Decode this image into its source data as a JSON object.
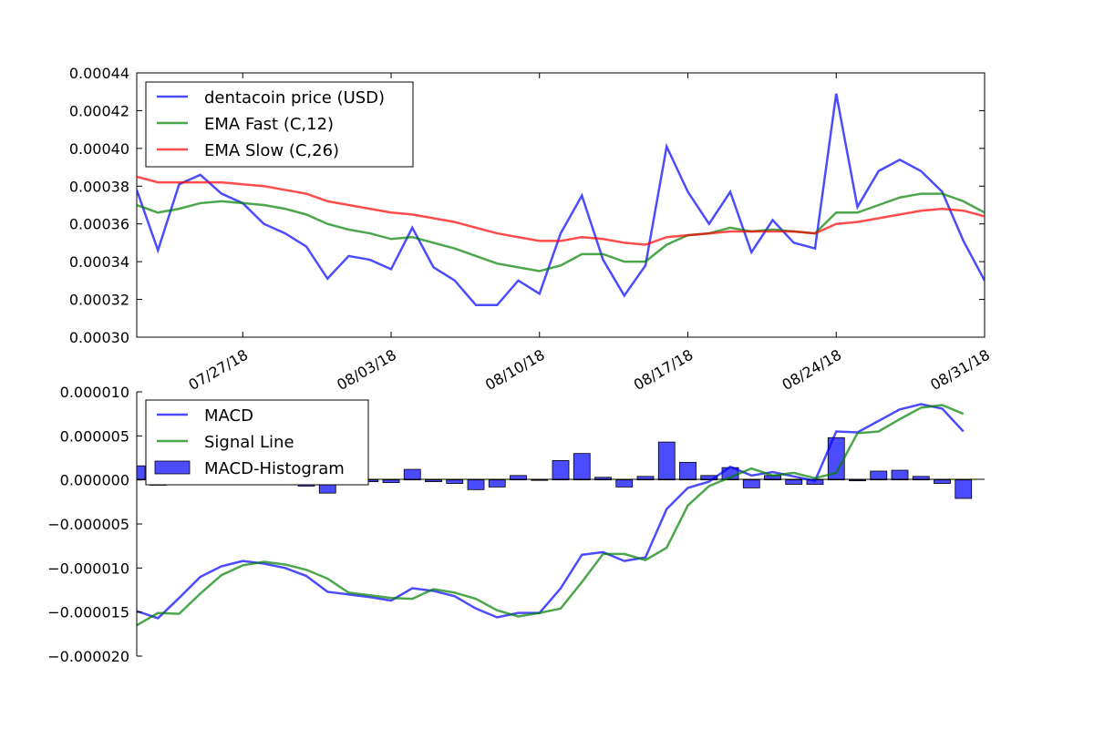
{
  "chart_data": [
    {
      "type": "line",
      "x": [
        "07/22/18",
        "07/23/18",
        "07/24/18",
        "07/25/18",
        "07/26/18",
        "07/27/18",
        "07/28/18",
        "07/29/18",
        "07/30/18",
        "07/31/18",
        "08/01/18",
        "08/02/18",
        "08/03/18",
        "08/04/18",
        "08/05/18",
        "08/06/18",
        "08/07/18",
        "08/08/18",
        "08/09/18",
        "08/10/18",
        "08/11/18",
        "08/12/18",
        "08/13/18",
        "08/14/18",
        "08/15/18",
        "08/16/18",
        "08/17/18",
        "08/18/18",
        "08/19/18",
        "08/20/18",
        "08/21/18",
        "08/22/18",
        "08/23/18",
        "08/24/18",
        "08/25/18",
        "08/26/18",
        "08/27/18",
        "08/28/18",
        "08/29/18",
        "08/30/18",
        "08/31/18"
      ],
      "series": [
        {
          "name": "dentacoin price (USD)",
          "color": "#0000ff",
          "values": [
            0.000378,
            0.000346,
            0.000381,
            0.000386,
            0.000376,
            0.000371,
            0.00036,
            0.000355,
            0.000348,
            0.000331,
            0.000343,
            0.000341,
            0.000336,
            0.000358,
            0.000337,
            0.00033,
            0.000317,
            0.000317,
            0.00033,
            0.000323,
            0.000355,
            0.000375,
            0.000341,
            0.000322,
            0.000338,
            0.000401,
            0.000377,
            0.00036,
            0.000377,
            0.000345,
            0.000362,
            0.00035,
            0.000347,
            0.000429,
            0.000369,
            0.000388,
            0.000394,
            0.000388,
            0.000377,
            0.000351,
            0.00033
          ]
        },
        {
          "name": "EMA Fast (C,12)",
          "color": "#008000",
          "values": [
            0.00037,
            0.000366,
            0.000368,
            0.000371,
            0.000372,
            0.000371,
            0.00037,
            0.000368,
            0.000365,
            0.00036,
            0.000357,
            0.000355,
            0.000352,
            0.000353,
            0.00035,
            0.000347,
            0.000343,
            0.000339,
            0.000337,
            0.000335,
            0.000338,
            0.000344,
            0.000344,
            0.00034,
            0.00034,
            0.000349,
            0.000354,
            0.000355,
            0.000358,
            0.000356,
            0.000357,
            0.000356,
            0.000355,
            0.000366,
            0.000366,
            0.00037,
            0.000374,
            0.000376,
            0.000376,
            0.000372,
            0.000366
          ]
        },
        {
          "name": "EMA Slow (C,26)",
          "color": "#ff0000",
          "values": [
            0.000385,
            0.000382,
            0.000382,
            0.000382,
            0.000382,
            0.000381,
            0.00038,
            0.000378,
            0.000376,
            0.000372,
            0.00037,
            0.000368,
            0.000366,
            0.000365,
            0.000363,
            0.000361,
            0.000358,
            0.000355,
            0.000353,
            0.000351,
            0.000351,
            0.000353,
            0.000352,
            0.00035,
            0.000349,
            0.000353,
            0.000354,
            0.000355,
            0.000356,
            0.000356,
            0.000356,
            0.000356,
            0.000355,
            0.00036,
            0.000361,
            0.000363,
            0.000365,
            0.000367,
            0.000368,
            0.000367,
            0.000364
          ]
        }
      ],
      "ylim": [
        0.0003,
        0.00044
      ],
      "yticks": [
        "0.00030",
        "0.00032",
        "0.00034",
        "0.00036",
        "0.00038",
        "0.00040",
        "0.00042",
        "0.00044"
      ],
      "xticks": [
        "07/27/18",
        "08/03/18",
        "08/10/18",
        "08/17/18",
        "08/24/18",
        "08/31/18"
      ],
      "legend": "top-left",
      "grid": false
    },
    {
      "type": "line",
      "x": [
        "07/22/18",
        "07/23/18",
        "07/24/18",
        "07/25/18",
        "07/26/18",
        "07/27/18",
        "07/28/18",
        "07/29/18",
        "07/30/18",
        "07/31/18",
        "08/01/18",
        "08/02/18",
        "08/03/18",
        "08/04/18",
        "08/05/18",
        "08/06/18",
        "08/07/18",
        "08/08/18",
        "08/09/18",
        "08/10/18",
        "08/11/18",
        "08/12/18",
        "08/13/18",
        "08/14/18",
        "08/15/18",
        "08/16/18",
        "08/17/18",
        "08/18/18",
        "08/19/18",
        "08/20/18",
        "08/21/18",
        "08/22/18",
        "08/23/18",
        "08/24/18",
        "08/25/18",
        "08/26/18",
        "08/27/18",
        "08/28/18",
        "08/29/18",
        "08/30/18"
      ],
      "series": [
        {
          "name": "MACD",
          "color": "#0000ff",
          "values": [
            -1.49e-05,
            -1.57e-05,
            -1.34e-05,
            -1.1e-05,
            -9.8e-06,
            -9.2e-06,
            -9.5e-06,
            -1e-05,
            -1.09e-05,
            -1.27e-05,
            -1.3e-05,
            -1.33e-05,
            -1.37e-05,
            -1.23e-05,
            -1.26e-05,
            -1.32e-05,
            -1.46e-05,
            -1.56e-05,
            -1.51e-05,
            -1.51e-05,
            -1.23e-05,
            -8.5e-06,
            -8.2e-06,
            -9.2e-06,
            -8.8e-06,
            -3.3e-06,
            -9e-07,
            -2e-07,
            1.5e-06,
            5e-07,
            9e-07,
            4e-07,
            -1e-07,
            5.5e-06,
            5.4e-06,
            6.7e-06,
            8e-06,
            8.6e-06,
            8.1e-06,
            5.5e-06
          ],
          "type": "line"
        },
        {
          "name": "Signal Line",
          "color": "#008000",
          "values": [
            -1.65e-05,
            -1.51e-05,
            -1.52e-05,
            -1.29e-05,
            -1.08e-05,
            -9.7e-06,
            -9.3e-06,
            -9.6e-06,
            -1.02e-05,
            -1.12e-05,
            -1.28e-05,
            -1.31e-05,
            -1.34e-05,
            -1.35e-05,
            -1.24e-05,
            -1.28e-05,
            -1.35e-05,
            -1.48e-05,
            -1.55e-05,
            -1.51e-05,
            -1.46e-05,
            -1.16e-05,
            -8.4e-06,
            -8.4e-06,
            -9.1e-06,
            -7.7e-06,
            -2.9e-06,
            -7e-07,
            3e-07,
            1.3e-06,
            5e-07,
            8e-07,
            2e-07,
            8e-07,
            5.3e-06,
            5.5e-06,
            6.9e-06,
            8.2e-06,
            8.5e-06,
            7.5e-06
          ]
        },
        {
          "name": "MACD-Histogram",
          "color": "#0000ff",
          "type": "bar",
          "values": [
            1.6e-06,
            -6e-07,
            1.8e-06,
            1.9e-06,
            1e-06,
            5e-07,
            -2e-07,
            -4e-07,
            -7e-07,
            -1.5e-06,
            -2e-07,
            -2e-07,
            -3e-07,
            1.2e-06,
            -2e-07,
            -4e-07,
            -1.1e-06,
            -8e-07,
            5e-07,
            0.0,
            2.2e-06,
            3e-06,
            3e-07,
            -8e-07,
            4e-07,
            4.3e-06,
            2e-06,
            5e-07,
            1.4e-06,
            -9e-07,
            5e-07,
            -5e-07,
            -5e-07,
            4.8e-06,
            -1e-07,
            1e-06,
            1.1e-06,
            4e-07,
            -4e-07,
            -2.1e-06
          ]
        }
      ],
      "ylim": [
        -2e-05,
        1e-05
      ],
      "yticks": [
        "−0.000020",
        "−0.000015",
        "−0.000010",
        "−0.000005",
        "0.000000",
        "0.000005",
        "0.000010"
      ],
      "legend": "top-left",
      "grid": false
    }
  ]
}
